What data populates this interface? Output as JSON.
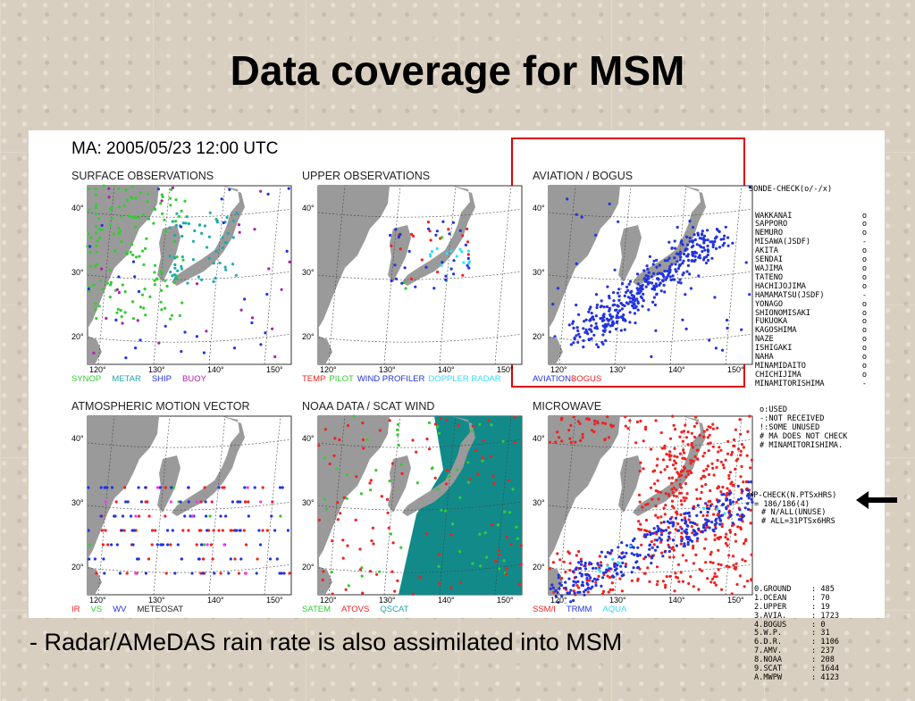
{
  "slide": {
    "title": "Data coverage for MSM",
    "note": "- Radar/AMeDAS rain rate is also assimilated into MSM"
  },
  "figure": {
    "header": "MA: 2005/05/23 12:00 UTC",
    "panels": [
      {
        "title": "SURFACE OBSERVATIONS",
        "legend": [
          {
            "text": "SYNOP",
            "color": "#33cc33"
          },
          {
            "text": "METAR",
            "color": "#22aaaa"
          },
          {
            "text": "SHIP",
            "color": "#2233dd"
          },
          {
            "text": "BUOY",
            "color": "#aa22aa"
          }
        ]
      },
      {
        "title": "UPPER OBSERVATIONS",
        "legend": [
          {
            "text": "TEMP",
            "color": "#ee2222"
          },
          {
            "text": "PILOT",
            "color": "#33cc33"
          },
          {
            "text": "WIND PROFILER",
            "color": "#2233dd"
          },
          {
            "text": "DOPPLER RADAR",
            "color": "#33ddff"
          }
        ]
      },
      {
        "title": "AVIATION / BOGUS",
        "legend": [
          {
            "text": "AVIATION",
            "color": "#2233dd"
          },
          {
            "text": "BOGUS",
            "color": "#ee2222"
          }
        ]
      },
      {
        "title": "ATMOSPHERIC MOTION VECTOR",
        "legend": [
          {
            "text": "IR",
            "color": "#ee2222"
          },
          {
            "text": "VS",
            "color": "#33cc33"
          },
          {
            "text": "WV",
            "color": "#2233dd"
          },
          {
            "text": "METEOSAT",
            "color": "#222222"
          }
        ]
      },
      {
        "title": "NOAA DATA / SCAT WIND",
        "legend": [
          {
            "text": "SATEM",
            "color": "#33cc33"
          },
          {
            "text": "ATOVS",
            "color": "#ee2222"
          },
          {
            "text": "QSCAT",
            "color": "#22aaaa"
          }
        ]
      },
      {
        "title": "MICROWAVE",
        "legend": [
          {
            "text": "SSM/I",
            "color": "#ee2222"
          },
          {
            "text": "TRMM",
            "color": "#2233dd"
          },
          {
            "text": "AQUA",
            "color": "#33ddff"
          }
        ]
      }
    ],
    "axis": {
      "lat_labels": [
        "40°",
        "30°",
        "20°"
      ],
      "lon_labels": [
        "120°",
        "130°",
        "140°",
        "150°"
      ]
    }
  },
  "sonde_check": {
    "header": "SONDE-CHECK(o/-/x)",
    "stations": [
      {
        "name": "WAKKANAI",
        "mark": "o"
      },
      {
        "name": "SAPPORO",
        "mark": "o"
      },
      {
        "name": "NEMURO",
        "mark": "o"
      },
      {
        "name": "MISAWA(JSDF)",
        "mark": "-"
      },
      {
        "name": "AKITA",
        "mark": "o"
      },
      {
        "name": "SENDAI",
        "mark": "o"
      },
      {
        "name": "WAJIMA",
        "mark": "o"
      },
      {
        "name": "TATENO",
        "mark": "o"
      },
      {
        "name": "HACHIJOJIMA",
        "mark": "o"
      },
      {
        "name": "HAMAMATSU(JSDF)",
        "mark": "-"
      },
      {
        "name": "YONAGO",
        "mark": "o"
      },
      {
        "name": "SHIONOMISAKI",
        "mark": "o"
      },
      {
        "name": "FUKUOKA",
        "mark": "o"
      },
      {
        "name": "KAGOSHIMA",
        "mark": "o"
      },
      {
        "name": "NAZE",
        "mark": "o"
      },
      {
        "name": "ISHIGAKI",
        "mark": "o"
      },
      {
        "name": "NAHA",
        "mark": "o"
      },
      {
        "name": "MINAMIDAITO",
        "mark": "o"
      },
      {
        "name": "CHICHIJIMA",
        "mark": "o"
      },
      {
        "name": "MINAMITORISHIMA",
        "mark": "-"
      }
    ],
    "legend_lines": [
      "o:USED",
      "-:NOT RECEIVED",
      "!:SOME UNUSED",
      "# MA DOES NOT CHECK",
      "# MINAMITORISHIMA."
    ]
  },
  "wp_check": {
    "lines": [
      "WP-CHECK(N.PTSxHRS)",
      "= 186/186(4)",
      "# N/ALL(UNUSE)",
      "# ALL=31PTSx6HRS"
    ]
  },
  "counts": [
    {
      "label": "0.GROUND",
      "value": "485"
    },
    {
      "label": "1.OCEAN",
      "value": "70"
    },
    {
      "label": "2.UPPER",
      "value": "19"
    },
    {
      "label": "3.AVIA.",
      "value": "1723"
    },
    {
      "label": "4.BOGUS",
      "value": "0"
    },
    {
      "label": "5.W.P.",
      "value": "31"
    },
    {
      "label": "6.D.R.",
      "value": "1106"
    },
    {
      "label": "7.AMV.",
      "value": "237"
    },
    {
      "label": "8.NOAA",
      "value": "208"
    },
    {
      "label": "9.SCAT",
      "value": "1644"
    },
    {
      "label": "A.MWPW",
      "value": "4123"
    }
  ],
  "colors": {
    "highlight": "#dd0000",
    "land": "#9a9a9a",
    "grid": "#444444"
  },
  "icons": {
    "arrow": "left-arrow-icon"
  }
}
